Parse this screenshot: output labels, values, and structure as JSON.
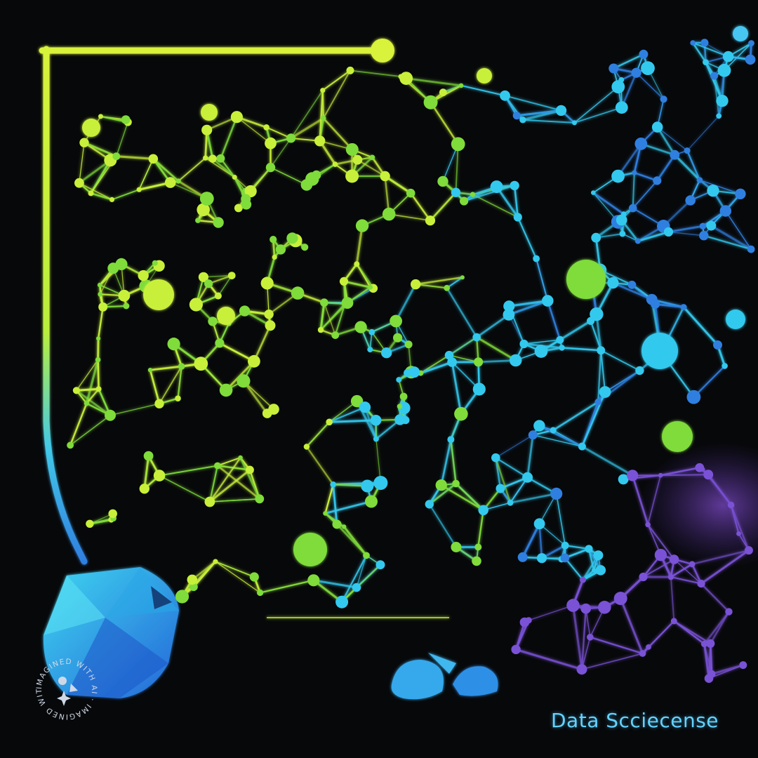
{
  "caption": "Data Scciecense",
  "badge": {
    "text": "IMAGINED WITH AI · IMAGINED WITH AI ·"
  },
  "colors": {
    "background": "#07080a",
    "lime": "#c8f03a",
    "green": "#7fdc3a",
    "cyan": "#33c9ee",
    "blue": "#2f7fe0",
    "violet": "#7a52d6",
    "caption": "#63d3ff"
  }
}
